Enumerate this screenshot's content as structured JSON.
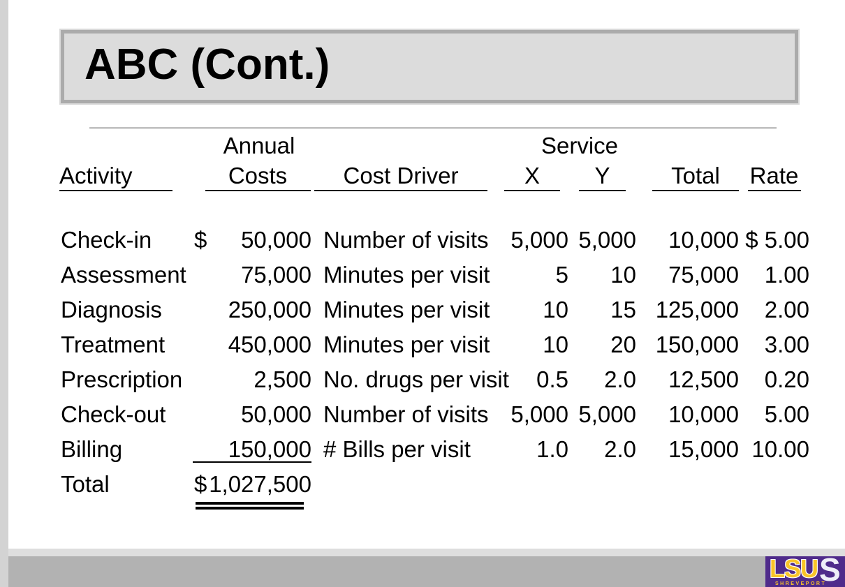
{
  "title": "ABC (Cont.)",
  "table": {
    "headers": {
      "activity": "Activity",
      "annual": "Annual",
      "costs": "Costs",
      "cost_driver": "Cost Driver",
      "service": "Service",
      "x": "X",
      "y": "Y",
      "total": "Total",
      "rate": "Rate"
    },
    "rows": [
      {
        "activity": "Check-in",
        "dollar": "$",
        "costs": "50,000",
        "driver": "Number of visits",
        "x": "5,000",
        "y": "5,000",
        "total": "10,000",
        "rate": "$ 5.00"
      },
      {
        "activity": "Assessment",
        "dollar": "",
        "costs": "75,000",
        "driver": "Minutes per visit",
        "x": "5",
        "y": "10",
        "total": "75,000",
        "rate": "1.00"
      },
      {
        "activity": "Diagnosis",
        "dollar": "",
        "costs": "250,000",
        "driver": "Minutes per visit",
        "x": "10",
        "y": "15",
        "total": "125,000",
        "rate": "2.00"
      },
      {
        "activity": "Treatment",
        "dollar": "",
        "costs": "450,000",
        "driver": "Minutes per visit",
        "x": "10",
        "y": "20",
        "total": "150,000",
        "rate": "3.00"
      },
      {
        "activity": "Prescription",
        "dollar": "",
        "costs": "2,500",
        "driver": "No. drugs per visit",
        "x": "0.5",
        "y": "2.0",
        "total": "12,500",
        "rate": "0.20"
      },
      {
        "activity": "Check-out",
        "dollar": "",
        "costs": "50,000",
        "driver": "Number of visits",
        "x": "5,000",
        "y": "5,000",
        "total": "10,000",
        "rate": "5.00"
      },
      {
        "activity": "Billing",
        "dollar": "",
        "costs": "150,000",
        "driver": "# Bills per visit",
        "x": "1.0",
        "y": "2.0",
        "total": "15,000",
        "rate": "10.00"
      }
    ],
    "total_row": {
      "label": "Total",
      "dollar": "$",
      "amount": "1,027,500"
    }
  },
  "logo": {
    "lsu": "LSU",
    "s": "S",
    "city": "SHREVEPORT"
  },
  "colors": {
    "slide_bg": "#ffffff",
    "left_strip": "#d3d3d3",
    "bottom_strip": "#dedede",
    "bottom_bar": "#b2b2b2",
    "title_fill": "#dcdcdc",
    "title_border": "#ababab",
    "title_outline": "#d9d9d9",
    "divider": "#b9b9b9",
    "text": "#000000",
    "logo_purple": "#4f2b8b",
    "logo_gold": "#f9c428",
    "logo_s": "#efeef8"
  }
}
